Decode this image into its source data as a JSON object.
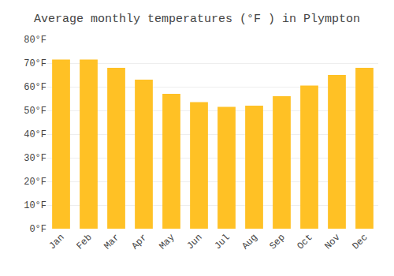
{
  "chart_data": {
    "type": "bar",
    "title": "Average monthly temperatures (°F ) in Plympton",
    "categories": [
      "Jan",
      "Feb",
      "Mar",
      "Apr",
      "May",
      "Jun",
      "Jul",
      "Aug",
      "Sep",
      "Oct",
      "Nov",
      "Dec"
    ],
    "values": [
      71.5,
      71.5,
      68,
      63,
      57,
      53.5,
      51.5,
      52,
      56,
      60.5,
      65,
      68
    ],
    "color": "#FFC125",
    "ylim": [
      0,
      80
    ],
    "yticks": [
      {
        "value": 0,
        "label": "0°F"
      },
      {
        "value": 10,
        "label": "10°F"
      },
      {
        "value": 20,
        "label": "20°F"
      },
      {
        "value": 30,
        "label": "30°F"
      },
      {
        "value": 40,
        "label": "40°F"
      },
      {
        "value": 50,
        "label": "50°F"
      },
      {
        "value": 60,
        "label": "60°F"
      },
      {
        "value": 70,
        "label": "70°F"
      },
      {
        "value": 80,
        "label": "80°F"
      }
    ],
    "grid": true
  }
}
